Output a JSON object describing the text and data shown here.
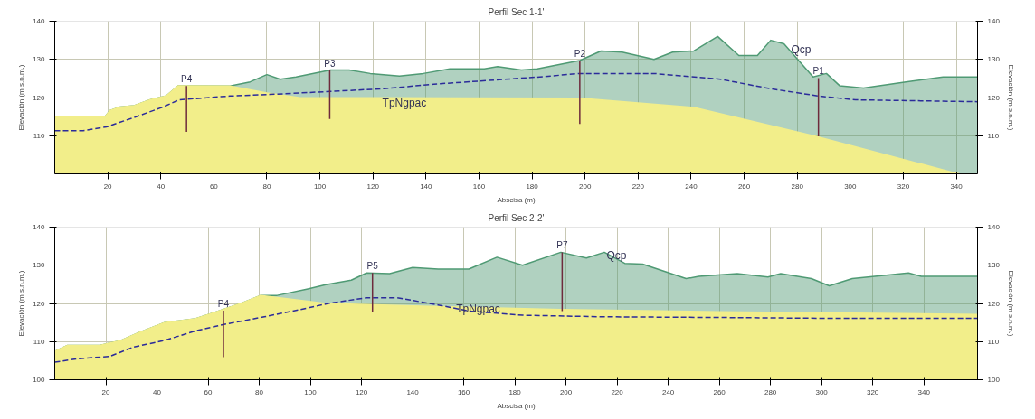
{
  "chart_data": [
    {
      "type": "area",
      "title": "Perfil Sec 1-1'",
      "xlabel": "Abscisa (m)",
      "ylabel": "Elevación (m s.n.m.)",
      "y2label": "Elevación (m s.n.m.)",
      "xlim": [
        0,
        348
      ],
      "xticks": [
        20,
        40,
        60,
        80,
        100,
        120,
        140,
        160,
        180,
        200,
        220,
        240,
        260,
        280,
        300,
        320,
        340
      ],
      "ylim": [
        100,
        140
      ],
      "yticks": [
        110,
        120,
        130,
        140
      ],
      "y2lim": [
        100,
        140
      ],
      "y2ticks": [
        110,
        120,
        130,
        140
      ],
      "grid": true,
      "series": [
        {
          "color": "#4f9a74",
          "x": [
            0,
            19,
            20.8,
            24.6,
            30,
            36,
            42,
            46.6,
            66,
            73.7,
            80,
            85,
            91,
            104,
            111,
            119,
            130,
            139,
            149,
            162,
            167,
            176,
            182,
            198,
            206,
            214,
            226,
            233,
            241,
            250,
            258,
            265,
            270,
            275,
            286,
            291,
            296,
            305,
            321,
            335,
            348
          ],
          "values": [
            115,
            115,
            116.6,
            117.5,
            117.9,
            119.4,
            120.4,
            123.1,
            123,
            124.1,
            126,
            124.8,
            125.4,
            127.2,
            127.2,
            126.3,
            125.6,
            126.3,
            127.5,
            127.5,
            128.1,
            127.2,
            127.5,
            129.7,
            132.2,
            131.9,
            130,
            131.9,
            132.2,
            136,
            131,
            131,
            135,
            134.1,
            125.4,
            126.3,
            123.1,
            122.5,
            124.1,
            125.4,
            125.4
          ]
        },
        {
          "color": "#f2ee8a",
          "x": [
            0,
            19,
            20.8,
            24.6,
            30,
            36,
            42,
            46.6,
            66,
            80,
            92,
            198,
            241,
            287,
            338,
            341
          ],
          "values": [
            115,
            115,
            116.6,
            117.5,
            117.9,
            119.4,
            120.4,
            123.1,
            123,
            121.2,
            120,
            119.8,
            117.4,
            109.8,
            100.5,
            100
          ]
        },
        {
          "type": "line",
          "line_style": "dashed",
          "color": "#2b2b9a",
          "x": [
            0,
            10.7,
            19.5,
            30,
            40,
            47,
            66,
            81,
            104,
            124,
            143,
            183,
            198,
            226,
            251,
            270,
            288,
            302,
            348
          ],
          "values": [
            111.3,
            111.3,
            112.3,
            114.8,
            117.3,
            119.4,
            120.4,
            120.8,
            121.6,
            122.3,
            123.5,
            125.4,
            126.3,
            126.3,
            124.8,
            122.3,
            120.4,
            119.4,
            118.9
          ]
        },
        {
          "type": "line",
          "color": "#6e2a3c",
          "x": [
            49.7,
            49.7
          ],
          "values": [
            123,
            111
          ]
        },
        {
          "type": "line",
          "color": "#6e2a3c",
          "x": [
            103.7,
            103.7
          ],
          "values": [
            127.2,
            114.4
          ]
        },
        {
          "type": "line",
          "color": "#6e2a3c",
          "x": [
            198,
            198
          ],
          "values": [
            129.7,
            113.1
          ]
        },
        {
          "type": "line",
          "color": "#6e2a3c",
          "x": [
            288,
            288
          ],
          "values": [
            125.1,
            109.8
          ]
        }
      ],
      "annotations": [
        {
          "text": "P4",
          "x": 49.7,
          "y": 123
        },
        {
          "text": "P3",
          "x": 103.7,
          "y": 127.2
        },
        {
          "text": "P2",
          "x": 198,
          "y": 129.7
        },
        {
          "text": "P1",
          "x": 288,
          "y": 125.1
        },
        "TpNgpac",
        "Qcp"
      ]
    },
    {
      "type": "area",
      "title": "Perfil Sec 2-2'",
      "xlabel": "Abscisa (m)",
      "ylabel": "Elevación (m s.n.m.)",
      "y2label": "Elevación (m s.n.m.)",
      "xlim": [
        0,
        361
      ],
      "xticks": [
        20,
        40,
        60,
        80,
        100,
        120,
        140,
        160,
        180,
        200,
        220,
        240,
        260,
        280,
        300,
        320,
        340
      ],
      "ylim": [
        100,
        140
      ],
      "yticks": [
        100,
        110,
        120,
        130,
        140
      ],
      "y2lim": [
        100,
        140
      ],
      "y2ticks": [
        100,
        110,
        120,
        130,
        140
      ],
      "grid": true,
      "series": [
        {
          "color": "#4f9a74",
          "x": [
            0,
            5,
            17.6,
            26,
            33,
            43,
            55,
            62,
            74,
            80.6,
            87,
            99,
            106,
            116,
            122,
            131,
            140,
            150,
            162,
            173,
            183,
            198,
            208,
            215,
            223,
            230,
            247,
            252,
            267,
            279,
            284,
            296,
            303,
            312,
            334,
            339,
            361
          ],
          "values": [
            107.4,
            109,
            109,
            110.3,
            112.4,
            115,
            116,
            117.5,
            120.3,
            122.1,
            122.1,
            123.8,
            124.9,
            126.1,
            128,
            127.8,
            129.4,
            129,
            129,
            132.1,
            130,
            133.4,
            131.9,
            133.4,
            130.5,
            130.3,
            126.5,
            127.1,
            127.8,
            126.9,
            127.8,
            126.5,
            124.6,
            126.5,
            128,
            127.1,
            127.1
          ]
        },
        {
          "color": "#f2ee8a",
          "x": [
            0,
            5,
            17.6,
            26,
            33,
            43,
            55,
            62,
            74,
            80.6,
            106,
            150,
            198,
            260,
            361
          ],
          "values": [
            107.4,
            109,
            109,
            110.3,
            112.4,
            115,
            116,
            117.5,
            120.3,
            122.1,
            120,
            119.2,
            118.4,
            117.8,
            117.1
          ]
        },
        {
          "type": "line",
          "line_style": "dashed",
          "color": "#2b2b9a",
          "x": [
            0,
            8.8,
            21.4,
            31,
            43,
            55,
            67,
            82,
            99,
            107,
            122,
            134,
            150,
            162,
            183,
            215,
            264,
            302,
            361
          ],
          "values": [
            104.6,
            105.5,
            106.1,
            108.6,
            110.3,
            112.8,
            114.6,
            116.5,
            118.8,
            120,
            121.5,
            121.5,
            119.6,
            118,
            116.9,
            116.5,
            116.3,
            116.1,
            116.1
          ]
        },
        {
          "type": "line",
          "color": "#6e2a3c",
          "x": [
            66,
            66
          ],
          "values": [
            118.1,
            105.9
          ]
        },
        {
          "type": "line",
          "color": "#6e2a3c",
          "x": [
            124.3,
            124.3
          ],
          "values": [
            128,
            117.8
          ]
        },
        {
          "type": "line",
          "color": "#6e2a3c",
          "x": [
            198.5,
            198.5
          ],
          "values": [
            133.4,
            118
          ]
        }
      ],
      "annotations": [
        {
          "text": "P4",
          "x": 66,
          "y": 118.1
        },
        {
          "text": "P5",
          "x": 124.3,
          "y": 128
        },
        {
          "text": "P7",
          "x": 198.5,
          "y": 133.4
        },
        "TpNgpac",
        "Qcp"
      ]
    }
  ]
}
